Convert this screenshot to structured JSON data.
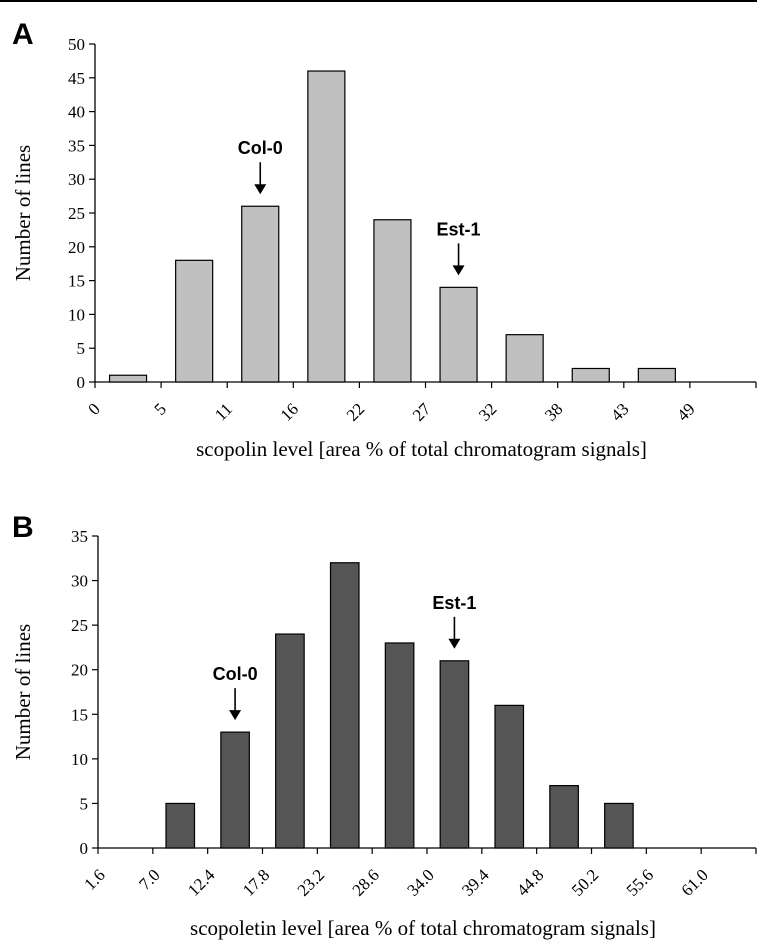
{
  "chart_data": [
    {
      "type": "bar",
      "panel": "A",
      "xlabel": "scopolin level [area % of total chromatogram signals]",
      "ylabel": "Number of lines",
      "ylim": [
        0,
        50
      ],
      "yticks": [
        "0",
        "5",
        "10",
        "15",
        "20",
        "25",
        "30",
        "35",
        "40",
        "45",
        "50"
      ],
      "xticks": [
        "0",
        "5",
        "11",
        "16",
        "22",
        "27",
        "32",
        "38",
        "43",
        "49"
      ],
      "values": [
        1,
        18,
        26,
        46,
        24,
        14,
        7,
        2,
        2,
        0
      ],
      "bar_color": "#c0c0c0",
      "annotations": [
        {
          "label": "Col-0",
          "bar_index": 2
        },
        {
          "label": "Est-1",
          "bar_index": 5
        }
      ]
    },
    {
      "type": "bar",
      "panel": "B",
      "xlabel": "scopoletin level [area % of total chromatogram signals]",
      "ylabel": "Number of lines",
      "ylim": [
        0,
        35
      ],
      "yticks": [
        "0",
        "5",
        "10",
        "15",
        "20",
        "25",
        "30",
        "35"
      ],
      "xticks": [
        "1.6",
        "7.0",
        "12.4",
        "17.8",
        "23.2",
        "28.6",
        "34.0",
        "39.4",
        "44.8",
        "50.2",
        "55.6",
        "61.0"
      ],
      "values": [
        0,
        5,
        13,
        24,
        32,
        23,
        21,
        16,
        7,
        5,
        0
      ],
      "bar_color": "#555555",
      "annotations": [
        {
          "label": "Col-0",
          "bar_index": 2
        },
        {
          "label": "Est-1",
          "bar_index": 6
        }
      ]
    }
  ]
}
